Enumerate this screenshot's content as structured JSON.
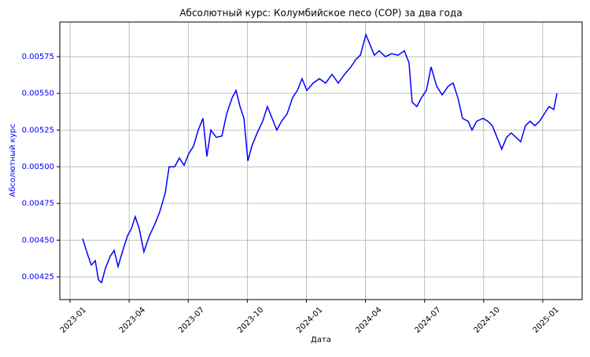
{
  "chart_data": {
    "type": "line",
    "title": "Абсолютный курс: Колумбийское песо (COP) за два года",
    "xlabel": "Дата",
    "ylabel": "Абсолютный курс",
    "x": [
      0.64,
      0.76,
      0.92,
      1.08,
      1.28,
      1.44,
      1.6,
      1.8,
      2.04,
      2.24,
      2.44,
      2.68,
      2.92,
      3.12,
      3.31,
      3.51,
      3.75,
      4.03,
      4.31,
      4.55,
      4.83,
      5.03,
      5.31,
      5.55,
      5.79,
      6.03,
      6.27,
      6.51,
      6.75,
      6.95,
      7.15,
      7.43,
      7.71,
      7.95,
      8.23,
      8.43,
      8.63,
      8.83,
      9.03,
      9.23,
      9.5,
      9.78,
      10.02,
      10.26,
      10.5,
      10.74,
      11.02,
      11.3,
      11.54,
      11.78,
      12.02,
      12.34,
      12.66,
      12.98,
      13.3,
      13.62,
      13.94,
      14.26,
      14.5,
      14.74,
      15.02,
      15.21,
      15.45,
      15.69,
      16.01,
      16.33,
      16.65,
      16.97,
      17.21,
      17.37,
      17.61,
      17.84,
      18.09,
      18.33,
      18.61,
      18.89,
      19.21,
      19.45,
      19.69,
      19.93,
      20.21,
      20.41,
      20.65,
      20.97,
      21.21,
      21.44,
      21.68,
      21.92,
      22.16,
      22.4,
      22.64,
      22.88,
      23.12,
      23.36,
      23.6,
      23.84,
      24.08,
      24.32,
      24.56,
      24.72
    ],
    "series": [
      {
        "name": "Абсолютный курс",
        "color": "#0000ff",
        "values": [
          0.00451,
          0.00446,
          0.00439,
          0.00433,
          0.00436,
          0.00423,
          0.00421,
          0.00431,
          0.00439,
          0.00443,
          0.00432,
          0.00443,
          0.00453,
          0.00458,
          0.00466,
          0.00458,
          0.00442,
          0.00453,
          0.00461,
          0.00469,
          0.00482,
          0.005,
          0.005,
          0.00506,
          0.00501,
          0.00509,
          0.00514,
          0.00525,
          0.00533,
          0.00507,
          0.00525,
          0.0052,
          0.00521,
          0.00536,
          0.00547,
          0.00552,
          0.00541,
          0.00533,
          0.00504,
          0.00514,
          0.00523,
          0.00531,
          0.00541,
          0.00533,
          0.00525,
          0.00531,
          0.00536,
          0.00547,
          0.00552,
          0.0056,
          0.00552,
          0.00557,
          0.0056,
          0.00557,
          0.00563,
          0.00557,
          0.00563,
          0.00568,
          0.00573,
          0.00576,
          0.0059,
          0.00584,
          0.00576,
          0.00579,
          0.00575,
          0.00577,
          0.00576,
          0.00579,
          0.00571,
          0.00544,
          0.00541,
          0.00547,
          0.00552,
          0.00568,
          0.00555,
          0.00549,
          0.00555,
          0.00557,
          0.00547,
          0.00533,
          0.00531,
          0.00525,
          0.00531,
          0.00533,
          0.00531,
          0.00528,
          0.0052,
          0.00512,
          0.0052,
          0.00523,
          0.0052,
          0.00517,
          0.00528,
          0.00531,
          0.00528,
          0.00531,
          0.00536,
          0.00541,
          0.00539,
          0.0055
        ]
      }
    ],
    "xlim": [
      -0.52,
      26.0
    ],
    "xticks": [
      {
        "value": 0,
        "label": "2023-01"
      },
      {
        "value": 3,
        "label": "2023-04"
      },
      {
        "value": 6,
        "label": "2023-07"
      },
      {
        "value": 9,
        "label": "2023-10"
      },
      {
        "value": 12,
        "label": "2024-01"
      },
      {
        "value": 15,
        "label": "2024-04"
      },
      {
        "value": 18,
        "label": "2024-07"
      },
      {
        "value": 21,
        "label": "2024-10"
      },
      {
        "value": 24,
        "label": "2025-01"
      }
    ],
    "ylim": [
      0.004095,
      0.005986
    ],
    "yticks": [
      0.00425,
      {
        "value": 0.0045,
        "label": "0.00450"
      },
      0.00475,
      {
        "value": 0.005,
        "label": "0.00500"
      },
      0.00525,
      {
        "value": 0.0055,
        "label": "0.00550"
      },
      0.00575
    ],
    "grid": true,
    "tick_color": "#0000ff"
  }
}
